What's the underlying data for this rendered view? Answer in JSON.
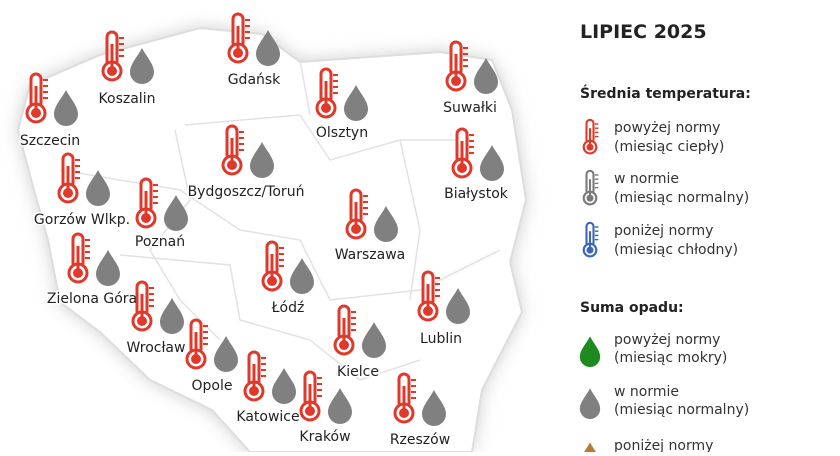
{
  "title": "LIPIEC 2025",
  "legend": {
    "temperature": {
      "heading": "Średnia temperatura:",
      "items": [
        {
          "label": "powyżej normy",
          "note": "(miesiąc ciepły)",
          "color": "#e0392b"
        },
        {
          "label": "w normie",
          "note": "(miesiąc normalny)",
          "color": "#7a7a7a"
        },
        {
          "label": "poniżej normy",
          "note": "(miesiąc chłodny)",
          "color": "#3a66b5"
        }
      ]
    },
    "precipitation": {
      "heading": "Suma opadu:",
      "items": [
        {
          "label": "powyżej normy",
          "note": "(miesiąc mokry)",
          "color": "#1f8a1f"
        },
        {
          "label": "w normie",
          "note": "(miesiąc normalny)",
          "color": "#808080"
        },
        {
          "label": "poniżej normy",
          "color": "#b87a3a"
        }
      ]
    }
  },
  "cities": [
    "Gdańsk",
    "Koszalin",
    "Szczecin",
    "Suwałki",
    "Olsztyn",
    "Bydgoszcz/Toruń",
    "Białystok",
    "Gorzów Wlkp.",
    "Poznań",
    "Warszawa",
    "Zielona Góra",
    "Łódź",
    "Wrocław",
    "Lublin",
    "Opole",
    "Kielce",
    "Katowice",
    "Kraków",
    "Rzeszów"
  ]
}
